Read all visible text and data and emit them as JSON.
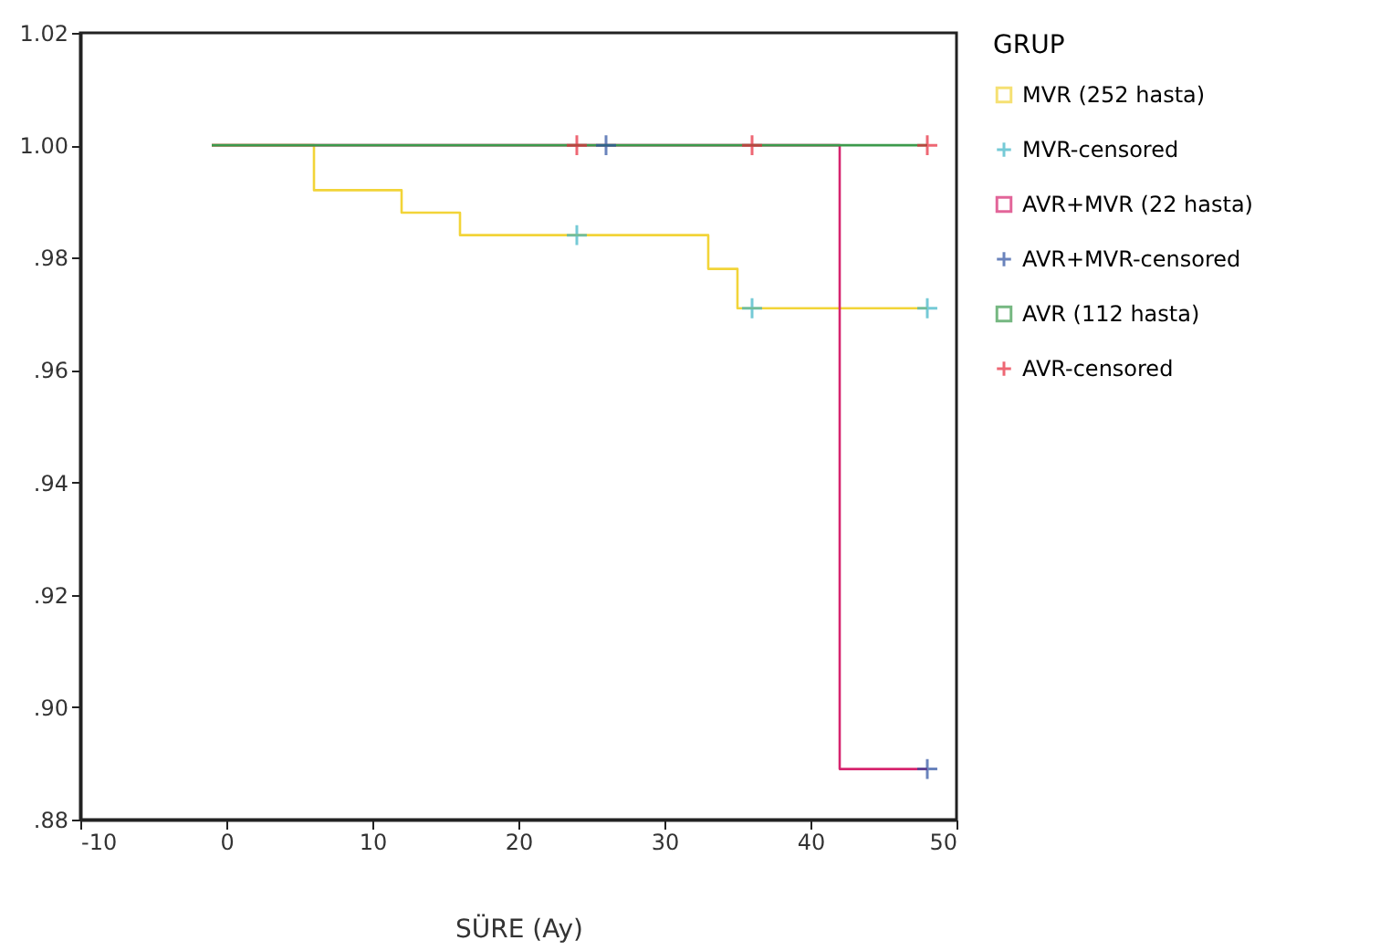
{
  "chart_data": {
    "type": "step",
    "xlabel": "SÜRE (Ay)",
    "legend_title": "GRUP",
    "legend": "right",
    "grid": false,
    "xlim": [
      -10,
      50
    ],
    "xticks": [
      -10,
      0,
      10,
      20,
      30,
      40,
      50
    ],
    "ylim": [
      0.88,
      1.02
    ],
    "yticks": [
      {
        "value": 0.88,
        "label": ".88"
      },
      {
        "value": 0.9,
        "label": ".90"
      },
      {
        "value": 0.92,
        "label": ".92"
      },
      {
        "value": 0.94,
        "label": ".94"
      },
      {
        "value": 0.96,
        "label": ".96"
      },
      {
        "value": 0.98,
        "label": ".98"
      },
      {
        "value": 1.0,
        "label": "1.00"
      },
      {
        "value": 1.02,
        "label": "1.02"
      }
    ],
    "series": [
      {
        "name": "MVR (252 hasta)",
        "marker": "none",
        "color": "#f2d438",
        "x": [
          -1,
          6,
          12,
          16,
          33,
          35,
          48
        ],
        "values": [
          1.0,
          0.992,
          0.988,
          0.984,
          0.978,
          0.971,
          0.971
        ]
      },
      {
        "name": "MVR-censored",
        "type": "scatter",
        "marker": "cross",
        "color": "#3cb4c6",
        "x": [
          24,
          36,
          48
        ],
        "values": [
          0.984,
          0.971,
          0.971
        ]
      },
      {
        "name": "AVR+MVR (22 hasta)",
        "marker": "none",
        "color": "#d6246e",
        "x": [
          -1,
          42,
          48
        ],
        "values": [
          1.0,
          0.889,
          0.889
        ]
      },
      {
        "name": "AVR+MVR-censored",
        "type": "scatter",
        "marker": "cross",
        "color": "#2c50a0",
        "x": [
          26,
          48
        ],
        "values": [
          1.0,
          0.889
        ]
      },
      {
        "name": "AVR (112 hasta)",
        "marker": "none",
        "color": "#3c9a4c",
        "x": [
          -1,
          48
        ],
        "values": [
          1.0,
          1.0
        ]
      },
      {
        "name": "AVR-censored",
        "type": "scatter",
        "marker": "cross",
        "color": "#e8283a",
        "x": [
          24,
          36,
          48
        ],
        "values": [
          1.0,
          1.0,
          1.0
        ]
      }
    ]
  }
}
